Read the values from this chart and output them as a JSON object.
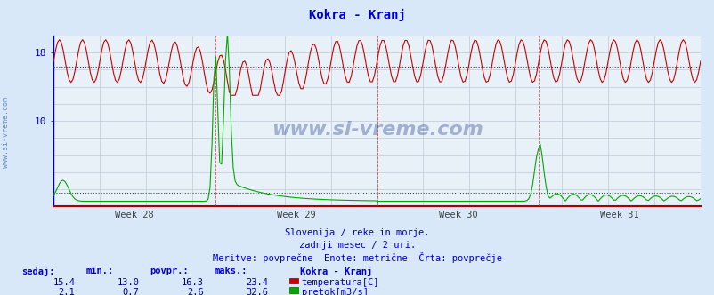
{
  "title": "Kokra - Kranj",
  "title_color": "#0000cc",
  "bg_color": "#d8e8f8",
  "plot_bg_color": "#e8f0f8",
  "grid_color": "#c0c8d8",
  "axis_color": "#0000aa",
  "xlabel_weeks": [
    "Week 28",
    "Week 29",
    "Week 30",
    "Week 31"
  ],
  "ylim": [
    0,
    20
  ],
  "yticks": [
    10,
    18
  ],
  "temp_avg": 16.3,
  "flow_avg": 2.6,
  "temp_color": "#cc0000",
  "flow_color": "#00aa00",
  "temp_dotted_color": "#cc0000",
  "flow_dotted_color": "#008800",
  "watermark": "www.si-vreme.com",
  "watermark_color": "#1a3a8a",
  "watermark_alpha": 0.35,
  "subtitle1": "Slovenija / reke in morje.",
  "subtitle2": "zadnji mesec / 2 uri.",
  "subtitle3": "Meritve: povprečne  Enote: metrične  Črta: povprečje",
  "subtitle_color": "#0000cc",
  "table_label_color": "#0000cc",
  "table_value_color": "#000088",
  "n_points": 336,
  "temp_min": 13.0,
  "temp_max": 23.4,
  "temp_sedaj": 15.4,
  "temp_povpr": 16.3,
  "flow_min": 0.7,
  "flow_max": 32.6,
  "flow_sedaj": 2.1,
  "flow_povpr": 2.6
}
